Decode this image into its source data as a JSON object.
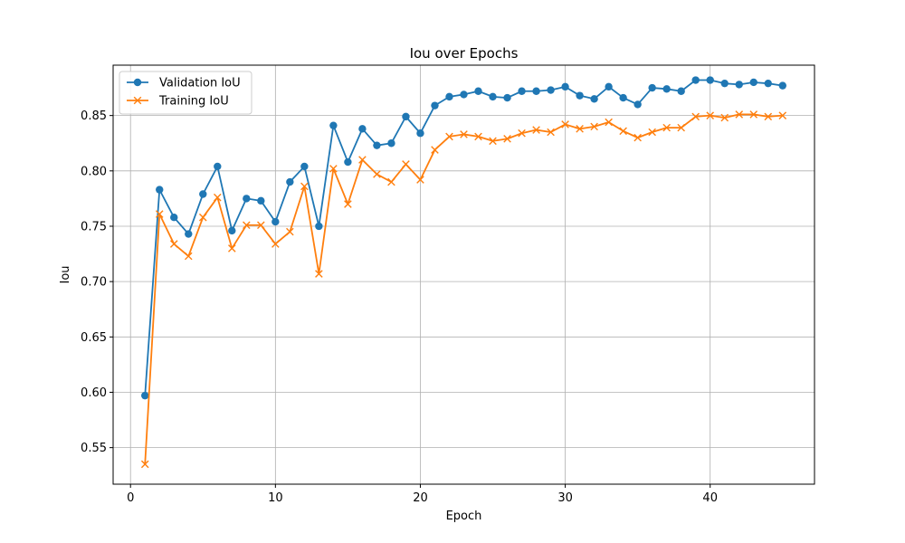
{
  "chart_data": {
    "type": "line",
    "title": "Iou over Epochs",
    "xlabel": "Epoch",
    "ylabel": "Iou",
    "xlim": [
      -1.2,
      47.2
    ],
    "ylim": [
      0.517,
      0.8955
    ],
    "xticks": [
      0,
      10,
      20,
      30,
      40
    ],
    "yticks": [
      0.55,
      0.6,
      0.65,
      0.7,
      0.75,
      0.8,
      0.85
    ],
    "grid": true,
    "legend_position": "upper-left",
    "x": [
      1,
      2,
      3,
      4,
      5,
      6,
      7,
      8,
      9,
      10,
      11,
      12,
      13,
      14,
      15,
      16,
      17,
      18,
      19,
      20,
      21,
      22,
      23,
      24,
      25,
      26,
      27,
      28,
      29,
      30,
      31,
      32,
      33,
      34,
      35,
      36,
      37,
      38,
      39,
      40,
      41,
      42,
      43,
      44,
      45
    ],
    "series": [
      {
        "name": "Validation IoU",
        "color": "#1f77b4",
        "marker": "circle",
        "values": [
          0.597,
          0.783,
          0.758,
          0.743,
          0.779,
          0.804,
          0.746,
          0.775,
          0.773,
          0.754,
          0.79,
          0.804,
          0.75,
          0.841,
          0.808,
          0.838,
          0.823,
          0.825,
          0.849,
          0.834,
          0.859,
          0.867,
          0.869,
          0.872,
          0.867,
          0.866,
          0.872,
          0.872,
          0.873,
          0.876,
          0.868,
          0.865,
          0.876,
          0.866,
          0.86,
          0.875,
          0.874,
          0.872,
          0.882,
          0.882,
          0.879,
          0.878,
          0.88,
          0.879,
          0.877
        ]
      },
      {
        "name": "Training IoU",
        "color": "#ff7f0e",
        "marker": "x",
        "values": [
          0.535,
          0.761,
          0.734,
          0.723,
          0.758,
          0.776,
          0.73,
          0.751,
          0.751,
          0.734,
          0.745,
          0.786,
          0.707,
          0.802,
          0.77,
          0.81,
          0.797,
          0.79,
          0.806,
          0.792,
          0.819,
          0.831,
          0.833,
          0.831,
          0.827,
          0.829,
          0.834,
          0.837,
          0.835,
          0.842,
          0.838,
          0.84,
          0.844,
          0.836,
          0.83,
          0.835,
          0.839,
          0.839,
          0.849,
          0.85,
          0.848,
          0.851,
          0.851,
          0.849,
          0.85
        ]
      }
    ]
  }
}
